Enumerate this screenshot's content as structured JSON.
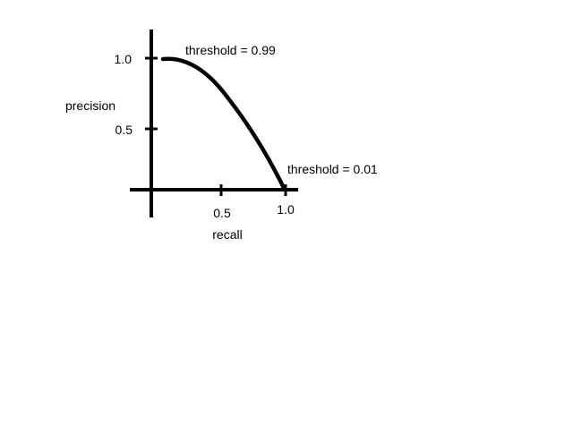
{
  "diagram": {
    "y_axis_label": "precision",
    "x_axis_label": "recall",
    "y_ticks": [
      "1.0",
      "0.5"
    ],
    "x_ticks": [
      "0.5",
      "1.0"
    ],
    "annotations": {
      "high_threshold": "threshold = 0.99",
      "low_threshold": "threshold = 0.01"
    },
    "stroke_color": "#000000"
  }
}
